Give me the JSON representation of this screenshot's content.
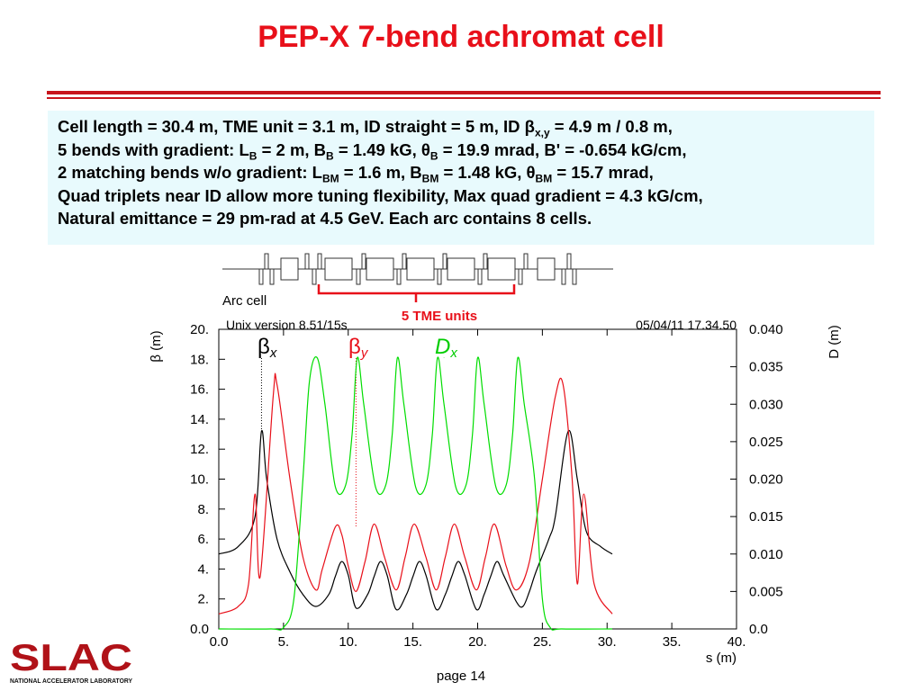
{
  "title": "PEP-X 7-bend achromat cell",
  "info_lines": [
    [
      "Cell length = 30.4 m, TME unit = 3.1 m, ID straight = 5 m, ID β",
      "x,y",
      " = 4.9 m / 0.8 m,"
    ],
    [
      "5 bends with gradient: L",
      "B",
      " = 2 m, B",
      "B",
      " = 1.49 kG, θ",
      "B",
      " = 19.9 mrad, B' = -0.654 kG/cm,"
    ],
    [
      "2 matching bends w/o gradient: L",
      "BM",
      " = 1.6 m, B",
      "BM",
      " = 1.48 kG, θ",
      "BM",
      " = 15.7 mrad,"
    ],
    [
      "Quad triplets near ID allow more tuning flexibility, Max quad gradient = 4.3 kG/cm,"
    ],
    [
      "Natural emittance = 29 pm-rad at 4.5 GeV.  Each arc contains 8 cells."
    ]
  ],
  "lattice": {
    "label": "Arc cell",
    "bracket_label": "5 TME units"
  },
  "plot_header": {
    "left": "Unix version 8.51/15s",
    "right": "05/04/11  17.34.50"
  },
  "colors": {
    "title": "#e8101a",
    "beta_x": "#000000",
    "beta_y": "#e8101a",
    "dx": "#00dd00",
    "box": "#e8fafd"
  },
  "chart_data": {
    "type": "line",
    "xlabel": "s (m)",
    "ylabel_left": "β (m)",
    "ylabel_right": "D (m)",
    "xlim": [
      0,
      40
    ],
    "ylim_left": [
      0,
      20
    ],
    "ylim_right": [
      0,
      0.04
    ],
    "xticks": [
      "0.0",
      "5.",
      "10.",
      "15.",
      "20.",
      "25.",
      "30.",
      "35.",
      "40."
    ],
    "yticks_left": [
      "0.0",
      "2.",
      "4.",
      "6.",
      "8.",
      "10.",
      "12.",
      "14.",
      "16.",
      "18.",
      "20."
    ],
    "yticks_right": [
      "0.0",
      "0.005",
      "0.010",
      "0.015",
      "0.020",
      "0.025",
      "0.030",
      "0.035",
      "0.040"
    ],
    "series": [
      {
        "name": "βx",
        "axis": "left",
        "x": [
          0,
          1.5,
          2.8,
          3.3,
          3.7,
          4.5,
          5.5,
          6.5,
          7.5,
          8.5,
          9.0,
          9.5,
          10.0,
          10.6,
          11.5,
          12.0,
          12.5,
          13.0,
          13.7,
          14.5,
          15.0,
          15.5,
          16.0,
          16.8,
          17.5,
          18.0,
          18.5,
          19.0,
          19.9,
          20.5,
          21.0,
          21.5,
          22.0,
          23.0,
          23.5,
          24.0,
          24.5,
          25.5,
          26.0,
          27.0,
          27.7,
          28.4,
          29.5,
          30.4
        ],
        "y": [
          5.0,
          5.5,
          7.5,
          13.2,
          10.0,
          6.0,
          3.8,
          2.3,
          1.5,
          2.3,
          3.5,
          4.5,
          3.6,
          1.4,
          2.3,
          3.5,
          4.5,
          3.6,
          1.3,
          2.3,
          3.5,
          4.5,
          3.6,
          1.3,
          2.3,
          3.5,
          4.5,
          3.6,
          1.3,
          2.3,
          3.5,
          4.5,
          3.6,
          1.8,
          1.5,
          2.5,
          3.8,
          6.0,
          7.5,
          13.2,
          10.0,
          6.5,
          5.5,
          5.0
        ]
      },
      {
        "name": "βy",
        "axis": "left",
        "x": [
          0,
          1.5,
          2.3,
          2.8,
          3.2,
          4.2,
          4.5,
          5.5,
          6.5,
          7.5,
          8.0,
          9.0,
          9.5,
          10.0,
          10.6,
          11.3,
          12.0,
          12.8,
          13.7,
          14.4,
          15.1,
          16.0,
          16.8,
          17.5,
          18.2,
          19.0,
          19.9,
          20.6,
          21.3,
          22.2,
          23.0,
          24.0,
          25.0,
          26.0,
          26.6,
          27.3,
          27.7,
          28.2,
          29.0,
          30.4
        ],
        "y": [
          1.0,
          1.5,
          3.0,
          9.0,
          3.5,
          15.5,
          16.3,
          10.0,
          4.8,
          2.6,
          4.0,
          6.8,
          6.3,
          4.2,
          2.5,
          4.5,
          7.0,
          4.8,
          2.6,
          4.8,
          7.0,
          4.8,
          2.6,
          4.8,
          7.0,
          4.8,
          2.6,
          4.8,
          7.0,
          4.2,
          2.6,
          4.5,
          10.0,
          15.5,
          16.3,
          10.0,
          3.0,
          9.0,
          3.0,
          1.0
        ]
      },
      {
        "name": "Dx",
        "axis": "right",
        "x": [
          0,
          4.0,
          5.0,
          5.8,
          6.5,
          7.0,
          7.6,
          8.2,
          9.0,
          9.8,
          10.3,
          10.7,
          11.2,
          12.1,
          12.9,
          13.4,
          13.8,
          14.3,
          15.2,
          16.0,
          16.5,
          16.9,
          17.4,
          18.3,
          19.1,
          19.6,
          20.0,
          20.5,
          21.4,
          22.2,
          22.7,
          23.1,
          23.6,
          24.4,
          25.0,
          25.6,
          26.5,
          30.4
        ],
        "y": [
          0,
          0,
          0.0002,
          0.004,
          0.02,
          0.033,
          0.0362,
          0.03,
          0.019,
          0.0192,
          0.026,
          0.0362,
          0.03,
          0.019,
          0.0192,
          0.026,
          0.0362,
          0.03,
          0.019,
          0.0192,
          0.026,
          0.0362,
          0.03,
          0.019,
          0.0192,
          0.026,
          0.0362,
          0.03,
          0.019,
          0.0192,
          0.026,
          0.0362,
          0.03,
          0.02,
          0.004,
          0.0002,
          0,
          0
        ]
      }
    ]
  }
}
